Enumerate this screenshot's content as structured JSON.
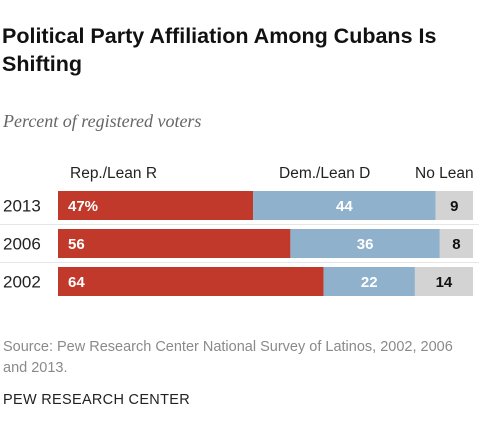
{
  "header": {
    "title": "Political Party Affiliation Among Cubans Is Shifting",
    "subtitle": "Percent of registered voters"
  },
  "legend": {
    "rep": "Rep./Lean R",
    "dem": "Dem./Lean D",
    "none": "No Lean"
  },
  "colors": {
    "rep": "#c0392b",
    "dem": "#8fb1cc",
    "none": "#d3d3d3",
    "rep_text": "#ffffff",
    "dem_text": "#ffffff",
    "none_text": "#111111"
  },
  "chart_data": {
    "type": "bar",
    "orientation": "horizontal",
    "stacked": true,
    "categories": [
      "2013",
      "2006",
      "2002"
    ],
    "series": [
      {
        "name": "Rep./Lean R",
        "values": [
          47,
          56,
          64
        ],
        "labels": [
          "47%",
          "56",
          "64"
        ]
      },
      {
        "name": "Dem./Lean D",
        "values": [
          44,
          36,
          22
        ],
        "labels": [
          "44",
          "36",
          "22"
        ]
      },
      {
        "name": "No Lean",
        "values": [
          9,
          8,
          14
        ],
        "labels": [
          "9",
          "8",
          "14"
        ]
      }
    ],
    "xlim": [
      0,
      100
    ]
  },
  "footer": {
    "source": "Source: Pew Research Center National Survey of Latinos, 2002, 2006 and 2013.",
    "brand": "PEW RESEARCH CENTER"
  }
}
